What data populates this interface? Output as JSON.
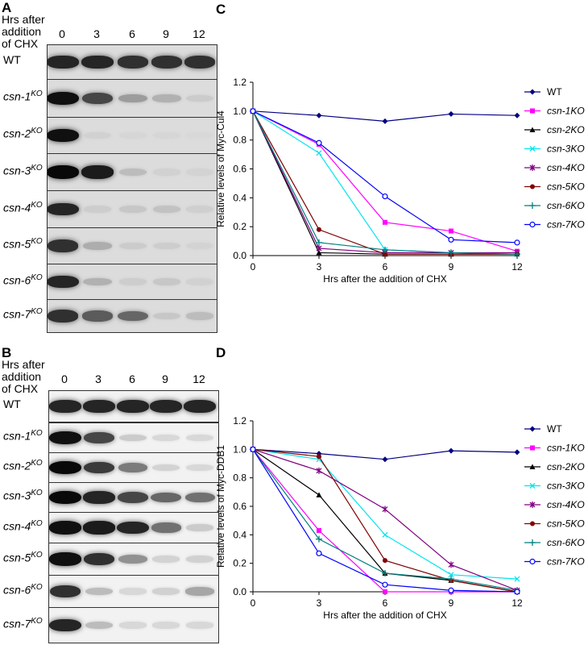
{
  "panel_letters": {
    "A": "A",
    "B": "B",
    "C": "C",
    "D": "D"
  },
  "blot_header_lines": [
    "Hrs after",
    "addition",
    "of CHX"
  ],
  "timepoints": [
    "0",
    "3",
    "6",
    "9",
    "12"
  ],
  "row_labels": [
    {
      "base": "WT",
      "sup": ""
    },
    {
      "base": "csn-1",
      "sup": "KO"
    },
    {
      "base": "csn-2",
      "sup": "KO"
    },
    {
      "base": "csn-3",
      "sup": "KO"
    },
    {
      "base": "csn-4",
      "sup": "KO"
    },
    {
      "base": "csn-5",
      "sup": "KO"
    },
    {
      "base": "csn-6",
      "sup": "KO"
    },
    {
      "base": "csn-7",
      "sup": "KO"
    }
  ],
  "blot_A": {
    "intensity": [
      [
        0.85,
        0.85,
        0.8,
        0.8,
        0.8
      ],
      [
        0.95,
        0.7,
        0.3,
        0.2,
        0.08
      ],
      [
        0.95,
        0.05,
        0.03,
        0.03,
        0.02
      ],
      [
        0.98,
        0.9,
        0.15,
        0.05,
        0.04
      ],
      [
        0.85,
        0.07,
        0.1,
        0.12,
        0.06
      ],
      [
        0.8,
        0.22,
        0.08,
        0.07,
        0.04
      ],
      [
        0.85,
        0.2,
        0.07,
        0.1,
        0.05
      ],
      [
        0.8,
        0.6,
        0.55,
        0.1,
        0.15
      ]
    ]
  },
  "blot_B": {
    "intensity": [
      [
        0.85,
        0.85,
        0.85,
        0.85,
        0.85
      ],
      [
        0.95,
        0.7,
        0.08,
        0.02,
        0.02
      ],
      [
        0.98,
        0.75,
        0.45,
        0.04,
        0.02
      ],
      [
        0.98,
        0.85,
        0.7,
        0.55,
        0.5
      ],
      [
        0.95,
        0.9,
        0.85,
        0.5,
        0.08
      ],
      [
        0.95,
        0.8,
        0.35,
        0.04,
        0.05
      ],
      [
        0.8,
        0.15,
        0.02,
        0.05,
        0.25
      ],
      [
        0.85,
        0.15,
        0.02,
        0.02,
        0.02
      ]
    ]
  },
  "chart_data": [
    {
      "type": "line",
      "panel": "C",
      "xlabel": "Hrs after the addition of CHX",
      "ylabel": "Relative levels of Myc-Cul4",
      "x": [
        0,
        3,
        6,
        9,
        12
      ],
      "xlim": [
        0,
        12
      ],
      "ylim": [
        0,
        1.2
      ],
      "yticks": [
        "0.0",
        "0.2",
        "0.4",
        "0.6",
        "0.8",
        "1.0",
        "1.2"
      ],
      "legend_position": "right",
      "series": [
        {
          "name": "WT",
          "values": [
            1.0,
            0.97,
            0.93,
            0.98,
            0.97
          ],
          "color": "#000080",
          "marker": "diamond"
        },
        {
          "name": "csn-1KO",
          "values": [
            1.0,
            0.77,
            0.23,
            0.17,
            0.03
          ],
          "color": "#ff00ff",
          "marker": "square"
        },
        {
          "name": "csn-2KO",
          "values": [
            1.0,
            0.02,
            0.01,
            0.01,
            0.01
          ],
          "color": "#000000",
          "marker": "triangle"
        },
        {
          "name": "csn-3KO",
          "values": [
            1.0,
            0.71,
            0.04,
            0.02,
            0.01
          ],
          "color": "#00e5ee",
          "marker": "x"
        },
        {
          "name": "csn-4KO",
          "values": [
            1.0,
            0.05,
            0.02,
            0.02,
            0.02
          ],
          "color": "#800080",
          "marker": "star"
        },
        {
          "name": "csn-5KO",
          "values": [
            1.0,
            0.18,
            0.01,
            0.01,
            0.01
          ],
          "color": "#800000",
          "marker": "circle"
        },
        {
          "name": "csn-6KO",
          "values": [
            1.0,
            0.09,
            0.04,
            0.02,
            0.01
          ],
          "color": "#008080",
          "marker": "plus"
        },
        {
          "name": "csn-7KO",
          "values": [
            1.0,
            0.78,
            0.41,
            0.11,
            0.09
          ],
          "color": "#0000ff",
          "marker": "ocircle"
        }
      ]
    },
    {
      "type": "line",
      "panel": "D",
      "xlabel": "Hrs after the addition of CHX",
      "ylabel": "Relative levels of Myc-DDB1",
      "x": [
        0,
        3,
        6,
        9,
        12
      ],
      "xlim": [
        0,
        12
      ],
      "ylim": [
        0,
        1.2
      ],
      "yticks": [
        "0.0",
        "0.2",
        "0.4",
        "0.6",
        "0.8",
        "1.0",
        "1.2"
      ],
      "legend_position": "right",
      "series": [
        {
          "name": "WT",
          "values": [
            1.0,
            0.97,
            0.93,
            0.99,
            0.98
          ],
          "color": "#000080",
          "marker": "diamond"
        },
        {
          "name": "csn-1KO",
          "values": [
            1.0,
            0.43,
            0.0,
            0.0,
            0.0
          ],
          "color": "#ff00ff",
          "marker": "square"
        },
        {
          "name": "csn-2KO",
          "values": [
            1.0,
            0.68,
            0.13,
            0.08,
            0.0
          ],
          "color": "#000000",
          "marker": "triangle"
        },
        {
          "name": "csn-3KO",
          "values": [
            1.0,
            0.93,
            0.4,
            0.12,
            0.09
          ],
          "color": "#00e5ee",
          "marker": "x"
        },
        {
          "name": "csn-4KO",
          "values": [
            1.0,
            0.85,
            0.58,
            0.19,
            0.01
          ],
          "color": "#800080",
          "marker": "star"
        },
        {
          "name": "csn-5KO",
          "values": [
            1.0,
            0.95,
            0.22,
            0.08,
            0.0
          ],
          "color": "#800000",
          "marker": "circle"
        },
        {
          "name": "csn-6KO",
          "values": [
            1.0,
            0.37,
            0.13,
            0.09,
            0.01
          ],
          "color": "#008080",
          "marker": "plus"
        },
        {
          "name": "csn-7KO",
          "values": [
            1.0,
            0.27,
            0.05,
            0.01,
            0.0
          ],
          "color": "#0000ff",
          "marker": "ocircle"
        }
      ]
    }
  ]
}
